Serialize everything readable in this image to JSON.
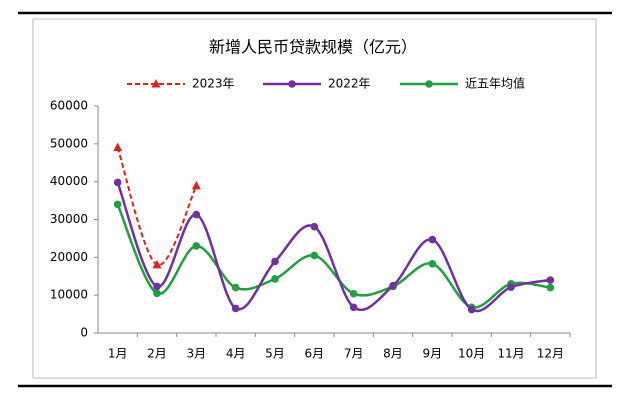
{
  "chart_data": {
    "type": "line",
    "title": "新增人民币贷款规模（亿元）",
    "categories": [
      "1月",
      "2月",
      "3月",
      "4月",
      "5月",
      "6月",
      "7月",
      "8月",
      "9月",
      "10月",
      "11月",
      "12月"
    ],
    "series": [
      {
        "name": "2023年",
        "color": "#e0201b",
        "dashed": true,
        "marker": "triangle",
        "values": [
          49000,
          18000,
          38900,
          null,
          null,
          null,
          null,
          null,
          null,
          null,
          null,
          null
        ]
      },
      {
        "name": "2022年",
        "color": "#7030a0",
        "marker": "circle",
        "values": [
          39800,
          12300,
          31300,
          6500,
          18900,
          28100,
          6800,
          12500,
          24700,
          6200,
          12100,
          14000
        ]
      },
      {
        "name": "近五年均值",
        "color": "#1fa042",
        "marker": "circle",
        "values": [
          34000,
          10500,
          23000,
          12000,
          14300,
          20500,
          10400,
          12300,
          18300,
          6800,
          13000,
          12000
        ]
      }
    ],
    "ylim": [
      0,
      60000
    ],
    "yticks": [
      0,
      10000,
      20000,
      30000,
      40000,
      50000,
      60000
    ],
    "smooth": true
  }
}
